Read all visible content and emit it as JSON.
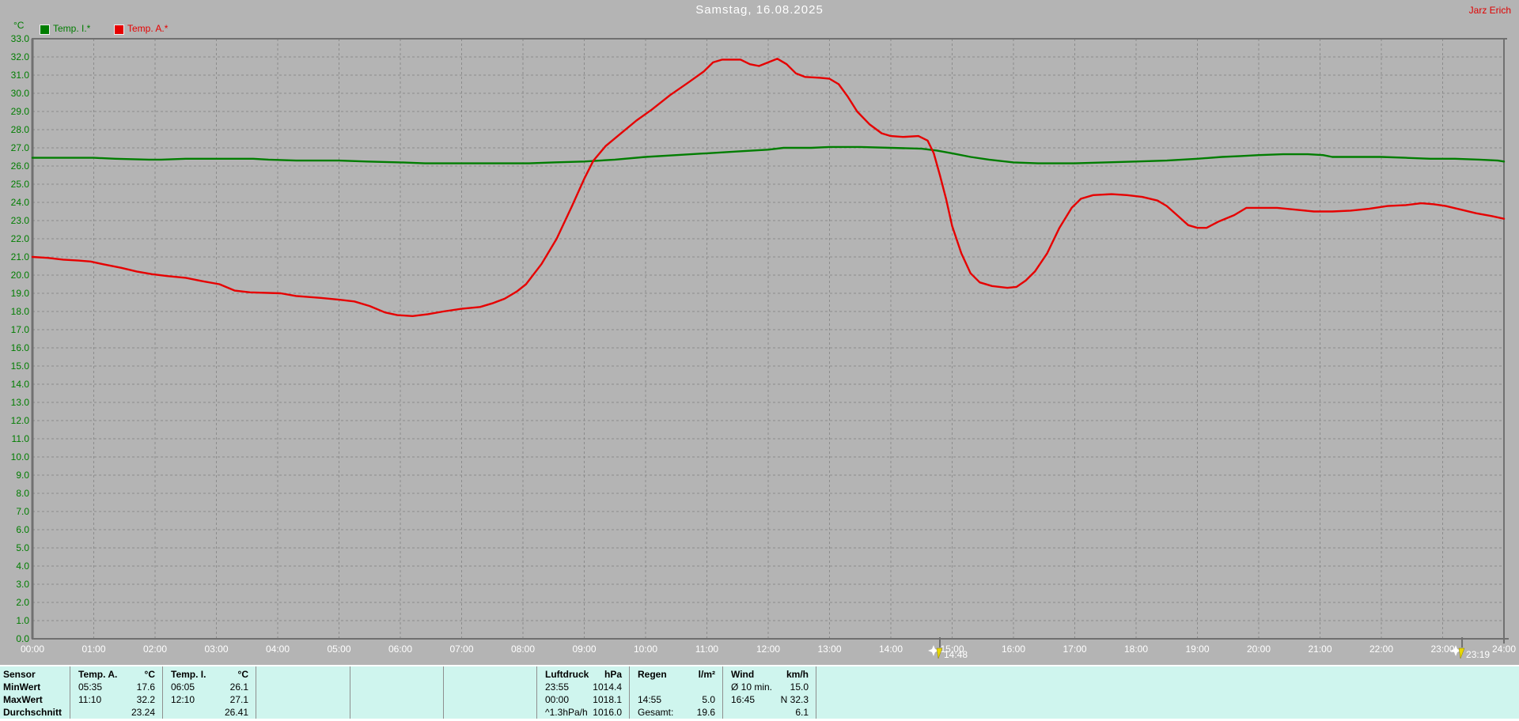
{
  "header": {
    "title": "Samstag, 16.08.2025",
    "author": "Jarz Erich"
  },
  "legend": {
    "unit": "°C",
    "items": [
      {
        "label": "Temp. I.*",
        "color": "#007d00"
      },
      {
        "label": "Temp. A.*",
        "color": "#e60000"
      }
    ]
  },
  "chart_data": {
    "type": "line",
    "title": "Samstag, 16.08.2025",
    "ylabel": "°C",
    "ylim": [
      0,
      33
    ],
    "y_tick_step": 1.0,
    "xlim_hours": [
      0,
      24
    ],
    "x_tick_labels": [
      "00:00",
      "01:00",
      "02:00",
      "03:00",
      "04:00",
      "05:00",
      "06:00",
      "07:00",
      "08:00",
      "09:00",
      "10:00",
      "11:00",
      "12:00",
      "13:00",
      "14:00",
      "15:00",
      "16:00",
      "17:00",
      "18:00",
      "19:00",
      "20:00",
      "21:00",
      "22:00",
      "23:00",
      "24:00"
    ],
    "grid": "dashed both directions",
    "colors": {
      "y_tick_text": "#007d00",
      "x_tick_text": "#ffffff",
      "grid": "#8c8c8c",
      "border": "#707070"
    },
    "series": [
      {
        "name": "Temp. I.*",
        "color": "#007d00",
        "points": [
          [
            0,
            26.45
          ],
          [
            0.6,
            26.45
          ],
          [
            1.0,
            26.45
          ],
          [
            1.35,
            26.4
          ],
          [
            1.9,
            26.35
          ],
          [
            2.1,
            26.35
          ],
          [
            2.5,
            26.4
          ],
          [
            3.1,
            26.4
          ],
          [
            3.6,
            26.4
          ],
          [
            3.85,
            26.35
          ],
          [
            4.3,
            26.3
          ],
          [
            5.0,
            26.3
          ],
          [
            5.45,
            26.25
          ],
          [
            6.0,
            26.2
          ],
          [
            6.4,
            26.15
          ],
          [
            7.0,
            26.15
          ],
          [
            7.6,
            26.15
          ],
          [
            8.1,
            26.15
          ],
          [
            8.5,
            26.2
          ],
          [
            9.0,
            26.25
          ],
          [
            9.5,
            26.35
          ],
          [
            10.0,
            26.5
          ],
          [
            10.5,
            26.6
          ],
          [
            11.0,
            26.7
          ],
          [
            11.5,
            26.8
          ],
          [
            12.0,
            26.9
          ],
          [
            12.25,
            27.0
          ],
          [
            12.7,
            27.0
          ],
          [
            13.0,
            27.05
          ],
          [
            13.5,
            27.05
          ],
          [
            14.0,
            27.0
          ],
          [
            14.5,
            26.95
          ],
          [
            14.75,
            26.85
          ],
          [
            15.0,
            26.7
          ],
          [
            15.3,
            26.5
          ],
          [
            15.6,
            26.35
          ],
          [
            16.0,
            26.2
          ],
          [
            16.4,
            26.15
          ],
          [
            17.0,
            26.15
          ],
          [
            17.5,
            26.2
          ],
          [
            18.0,
            26.25
          ],
          [
            18.5,
            26.3
          ],
          [
            19.0,
            26.4
          ],
          [
            19.4,
            26.5
          ],
          [
            19.7,
            26.55
          ],
          [
            20.0,
            26.6
          ],
          [
            20.4,
            26.65
          ],
          [
            20.8,
            26.65
          ],
          [
            21.05,
            26.6
          ],
          [
            21.2,
            26.5
          ],
          [
            21.6,
            26.5
          ],
          [
            22.0,
            26.5
          ],
          [
            22.4,
            26.45
          ],
          [
            22.8,
            26.4
          ],
          [
            23.2,
            26.4
          ],
          [
            23.6,
            26.35
          ],
          [
            23.9,
            26.3
          ],
          [
            24,
            26.25
          ]
        ]
      },
      {
        "name": "Temp. A.*",
        "color": "#e60000",
        "points": [
          [
            0,
            21.0
          ],
          [
            0.25,
            20.95
          ],
          [
            0.5,
            20.85
          ],
          [
            0.75,
            20.8
          ],
          [
            0.95,
            20.75
          ],
          [
            1.15,
            20.6
          ],
          [
            1.45,
            20.4
          ],
          [
            1.7,
            20.2
          ],
          [
            1.95,
            20.05
          ],
          [
            2.2,
            19.95
          ],
          [
            2.5,
            19.85
          ],
          [
            2.8,
            19.65
          ],
          [
            3.05,
            19.5
          ],
          [
            3.3,
            19.15
          ],
          [
            3.55,
            19.05
          ],
          [
            4.05,
            19.0
          ],
          [
            4.3,
            18.85
          ],
          [
            4.7,
            18.75
          ],
          [
            5.0,
            18.65
          ],
          [
            5.25,
            18.55
          ],
          [
            5.5,
            18.3
          ],
          [
            5.75,
            17.95
          ],
          [
            5.95,
            17.8
          ],
          [
            6.2,
            17.75
          ],
          [
            6.45,
            17.85
          ],
          [
            6.7,
            18.0
          ],
          [
            7.0,
            18.15
          ],
          [
            7.3,
            18.25
          ],
          [
            7.5,
            18.45
          ],
          [
            7.7,
            18.7
          ],
          [
            7.9,
            19.1
          ],
          [
            8.05,
            19.5
          ],
          [
            8.3,
            20.6
          ],
          [
            8.55,
            22.0
          ],
          [
            8.8,
            23.8
          ],
          [
            9.0,
            25.3
          ],
          [
            9.15,
            26.3
          ],
          [
            9.35,
            27.1
          ],
          [
            9.6,
            27.8
          ],
          [
            9.85,
            28.5
          ],
          [
            10.1,
            29.1
          ],
          [
            10.4,
            29.9
          ],
          [
            10.7,
            30.6
          ],
          [
            10.95,
            31.2
          ],
          [
            11.1,
            31.7
          ],
          [
            11.25,
            31.85
          ],
          [
            11.55,
            31.85
          ],
          [
            11.7,
            31.6
          ],
          [
            11.85,
            31.5
          ],
          [
            12.0,
            31.7
          ],
          [
            12.15,
            31.9
          ],
          [
            12.3,
            31.6
          ],
          [
            12.45,
            31.1
          ],
          [
            12.6,
            30.9
          ],
          [
            12.85,
            30.85
          ],
          [
            13.0,
            30.8
          ],
          [
            13.15,
            30.5
          ],
          [
            13.3,
            29.8
          ],
          [
            13.45,
            29.0
          ],
          [
            13.65,
            28.3
          ],
          [
            13.85,
            27.8
          ],
          [
            14.0,
            27.65
          ],
          [
            14.2,
            27.6
          ],
          [
            14.45,
            27.65
          ],
          [
            14.6,
            27.4
          ],
          [
            14.7,
            26.7
          ],
          [
            14.8,
            25.5
          ],
          [
            14.9,
            24.2
          ],
          [
            15.0,
            22.7
          ],
          [
            15.15,
            21.2
          ],
          [
            15.3,
            20.1
          ],
          [
            15.45,
            19.6
          ],
          [
            15.65,
            19.4
          ],
          [
            15.9,
            19.3
          ],
          [
            16.05,
            19.35
          ],
          [
            16.2,
            19.7
          ],
          [
            16.35,
            20.2
          ],
          [
            16.55,
            21.2
          ],
          [
            16.75,
            22.6
          ],
          [
            16.95,
            23.7
          ],
          [
            17.1,
            24.2
          ],
          [
            17.3,
            24.4
          ],
          [
            17.6,
            24.45
          ],
          [
            17.85,
            24.4
          ],
          [
            18.1,
            24.3
          ],
          [
            18.35,
            24.1
          ],
          [
            18.5,
            23.8
          ],
          [
            18.65,
            23.35
          ],
          [
            18.85,
            22.75
          ],
          [
            19.0,
            22.6
          ],
          [
            19.15,
            22.6
          ],
          [
            19.35,
            22.95
          ],
          [
            19.6,
            23.3
          ],
          [
            19.8,
            23.7
          ],
          [
            20.0,
            23.7
          ],
          [
            20.3,
            23.7
          ],
          [
            20.6,
            23.6
          ],
          [
            20.9,
            23.5
          ],
          [
            21.2,
            23.5
          ],
          [
            21.5,
            23.55
          ],
          [
            21.8,
            23.65
          ],
          [
            22.1,
            23.8
          ],
          [
            22.4,
            23.85
          ],
          [
            22.65,
            23.95
          ],
          [
            22.85,
            23.9
          ],
          [
            23.05,
            23.8
          ],
          [
            23.3,
            23.6
          ],
          [
            23.55,
            23.4
          ],
          [
            23.8,
            23.25
          ],
          [
            24,
            23.1
          ]
        ]
      }
    ],
    "event_markers": [
      {
        "label": "14:48",
        "t": 14.8
      },
      {
        "label": "23:19",
        "t": 23.3167
      }
    ]
  },
  "table": {
    "row_labels": [
      "Sensor",
      "MinWert",
      "MaxWert",
      "Durchschnitt"
    ],
    "columns": [
      {
        "empty": false,
        "header": [
          "Temp. A.",
          "°C"
        ],
        "cells": [
          [
            "05:35",
            "17.6"
          ],
          [
            "11:10",
            "32.2"
          ],
          [
            "",
            "23.24"
          ]
        ]
      },
      {
        "empty": false,
        "header": [
          "Temp. I.",
          "°C"
        ],
        "cells": [
          [
            "06:05",
            "26.1"
          ],
          [
            "12:10",
            "27.1"
          ],
          [
            "",
            "26.41"
          ]
        ]
      },
      {
        "empty": true,
        "header": [
          "",
          ""
        ],
        "cells": [
          [
            "",
            ""
          ],
          [
            "",
            ""
          ],
          [
            "",
            ""
          ]
        ]
      },
      {
        "empty": true,
        "header": [
          "",
          ""
        ],
        "cells": [
          [
            "",
            ""
          ],
          [
            "",
            ""
          ],
          [
            "",
            ""
          ]
        ]
      },
      {
        "empty": true,
        "header": [
          "",
          ""
        ],
        "cells": [
          [
            "",
            ""
          ],
          [
            "",
            ""
          ],
          [
            "",
            ""
          ]
        ]
      },
      {
        "empty": false,
        "header": [
          "Luftdruck",
          "hPa"
        ],
        "cells": [
          [
            "23:55",
            "1014.4"
          ],
          [
            "00:00",
            "1018.1"
          ],
          [
            "^1.3hPa/h",
            "1016.0"
          ]
        ]
      },
      {
        "empty": false,
        "header": [
          "Regen",
          "l/m²"
        ],
        "cells": [
          [
            "",
            ""
          ],
          [
            "14:55",
            "5.0"
          ],
          [
            "Gesamt:",
            "19.6"
          ]
        ]
      },
      {
        "empty": false,
        "header": [
          "Wind",
          "km/h"
        ],
        "cells": [
          [
            "Ø 10 min.",
            "15.0"
          ],
          [
            "16:45",
            "N 32.3"
          ],
          [
            "",
            "6.1"
          ]
        ]
      },
      {
        "empty": true,
        "header": [
          "",
          ""
        ],
        "cells": [
          [
            "",
            ""
          ],
          [
            "",
            ""
          ],
          [
            "",
            ""
          ]
        ]
      }
    ]
  }
}
